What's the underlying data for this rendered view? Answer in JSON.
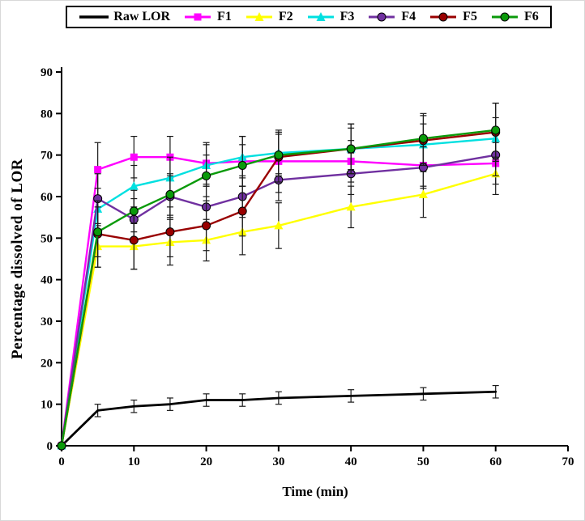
{
  "chart_data": {
    "type": "line",
    "title": "",
    "xlabel": "Time (min)",
    "ylabel": "Percentage dissolved of LOR",
    "xlim": [
      0,
      70
    ],
    "ylim": [
      0,
      90
    ],
    "xticks": [
      0,
      10,
      20,
      30,
      40,
      50,
      60,
      70
    ],
    "yticks": [
      0,
      10,
      20,
      30,
      40,
      50,
      60,
      70,
      80,
      90
    ],
    "x": [
      0,
      5,
      10,
      15,
      20,
      25,
      30,
      40,
      50,
      60
    ],
    "grid": false,
    "error_bars": true,
    "legend_position": "top",
    "series": [
      {
        "name": "Raw LOR",
        "color": "#000000",
        "marker": "none",
        "values": [
          0,
          8.5,
          9.5,
          10,
          11,
          11,
          11.5,
          12,
          12.5,
          13
        ],
        "errors": [
          0,
          1.5,
          1.5,
          1.5,
          1.5,
          1.5,
          1.5,
          1.5,
          1.5,
          1.5
        ]
      },
      {
        "name": "F1",
        "color": "#FF00FF",
        "marker": "square",
        "values": [
          0,
          66.5,
          69.5,
          69.5,
          68,
          68.5,
          68.5,
          68.5,
          67.5,
          68
        ],
        "errors": [
          0,
          6.5,
          5,
          5,
          5,
          6,
          7.5,
          5,
          5,
          5
        ]
      },
      {
        "name": "F2",
        "color": "#FFFF00",
        "marker": "triangle",
        "values": [
          0,
          48,
          48,
          49,
          49.5,
          51.5,
          53,
          57.5,
          60.5,
          65.5
        ],
        "errors": [
          0,
          5,
          5.5,
          5.5,
          5,
          5.5,
          5.5,
          5,
          5.5,
          5
        ]
      },
      {
        "name": "F3",
        "color": "#00E0E0",
        "marker": "triangle",
        "values": [
          0,
          57,
          62.5,
          64.5,
          67.5,
          69.5,
          70.5,
          71.5,
          72.5,
          74
        ],
        "errors": [
          0,
          5,
          5,
          5,
          5,
          5,
          5,
          5,
          5,
          5
        ]
      },
      {
        "name": "F4",
        "color": "#7030A0",
        "marker": "circle",
        "values": [
          0,
          59.5,
          54.5,
          60,
          57.5,
          60,
          64,
          65.5,
          67,
          70
        ],
        "errors": [
          0,
          6,
          5,
          5,
          5,
          5,
          5,
          5,
          5,
          5
        ]
      },
      {
        "name": "F5",
        "color": "#990000",
        "marker": "circle",
        "values": [
          0,
          51,
          49.5,
          51.5,
          53,
          56.5,
          69.5,
          71.5,
          73.5,
          75.5
        ],
        "errors": [
          0,
          8,
          7,
          6,
          6,
          6,
          6,
          6,
          6,
          7
        ]
      },
      {
        "name": "F6",
        "color": "#0A9A0A",
        "marker": "circle",
        "values": [
          0,
          51.5,
          56.5,
          60.5,
          65,
          67.5,
          70,
          71.5,
          74,
          76
        ],
        "errors": [
          0,
          6,
          5,
          5,
          5,
          5,
          5,
          6,
          6,
          6.5
        ]
      }
    ]
  }
}
